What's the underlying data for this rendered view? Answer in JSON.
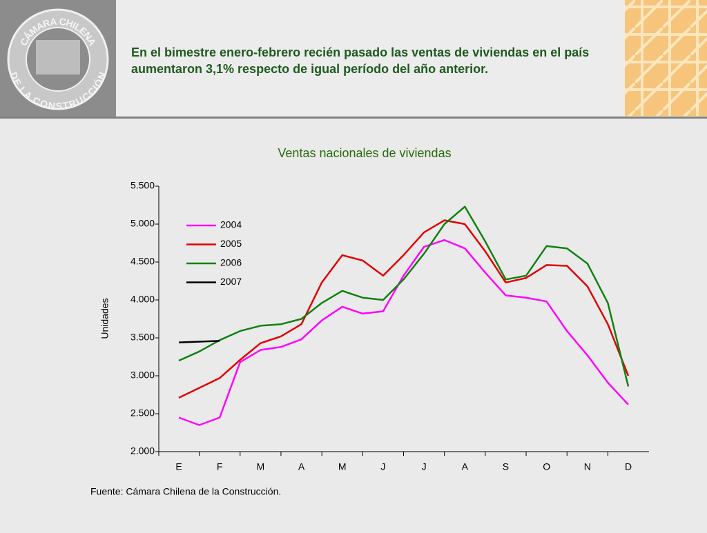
{
  "logo": {
    "top": "CÁMARA CHILENA",
    "bottom": "DE LA CONSTRUCCIÓN"
  },
  "header": {
    "title": "En el bimestre enero-febrero recién pasado las ventas de viviendas en el país aumentaron 3,1% respecto de igual período del año anterior."
  },
  "chart_data": {
    "type": "line",
    "title": "Ventas nacionales de viviendas",
    "ylabel": "Unidades",
    "categories": [
      "E",
      null,
      "F",
      null,
      "M",
      null,
      "A",
      null,
      "M",
      null,
      "J",
      null,
      "J",
      null,
      "A",
      null,
      "S",
      null,
      "O",
      null,
      "N",
      null,
      "D"
    ],
    "series": [
      {
        "name": "2004",
        "color": "#ff00ff",
        "values": [
          2450,
          2350,
          2450,
          3180,
          3340,
          3380,
          3480,
          3730,
          3910,
          3820,
          3850,
          4320,
          4700,
          4790,
          4680,
          4360,
          4060,
          4030,
          3980,
          3590,
          3270,
          2910,
          2620
        ]
      },
      {
        "name": "2005",
        "color": "#e00000",
        "values": [
          2710,
          2840,
          2970,
          3210,
          3430,
          3520,
          3680,
          4230,
          4590,
          4520,
          4320,
          4590,
          4890,
          5050,
          5000,
          4640,
          4230,
          4290,
          4460,
          4450,
          4180,
          3680,
          3000
        ]
      },
      {
        "name": "2006",
        "color": "#108010",
        "values": [
          3200,
          3320,
          3470,
          3590,
          3660,
          3680,
          3750,
          3960,
          4120,
          4030,
          4000,
          4270,
          4610,
          5000,
          5230,
          4770,
          4270,
          4320,
          4710,
          4680,
          4480,
          3960,
          2860
        ]
      },
      {
        "name": "2007",
        "color": "#000000",
        "values": [
          3440,
          3450,
          3460,
          null,
          null,
          null,
          null,
          null,
          null,
          null,
          null,
          null,
          null,
          null,
          null,
          null,
          null,
          null,
          null,
          null,
          null,
          null,
          null
        ]
      }
    ],
    "ylim": [
      2000,
      5500
    ],
    "yticks": [
      {
        "value": 2000,
        "label": "2.000"
      },
      {
        "value": 2500,
        "label": "2.500"
      },
      {
        "value": 3000,
        "label": "3.000"
      },
      {
        "value": 3500,
        "label": "3.500"
      },
      {
        "value": 4000,
        "label": "4.000"
      },
      {
        "value": 4500,
        "label": "4.500"
      },
      {
        "value": 5000,
        "label": "5.000"
      },
      {
        "value": 5500,
        "label": "5.500"
      }
    ],
    "legend": "upper left"
  },
  "source": "Fuente: Cámara Chilena de la Construcción."
}
